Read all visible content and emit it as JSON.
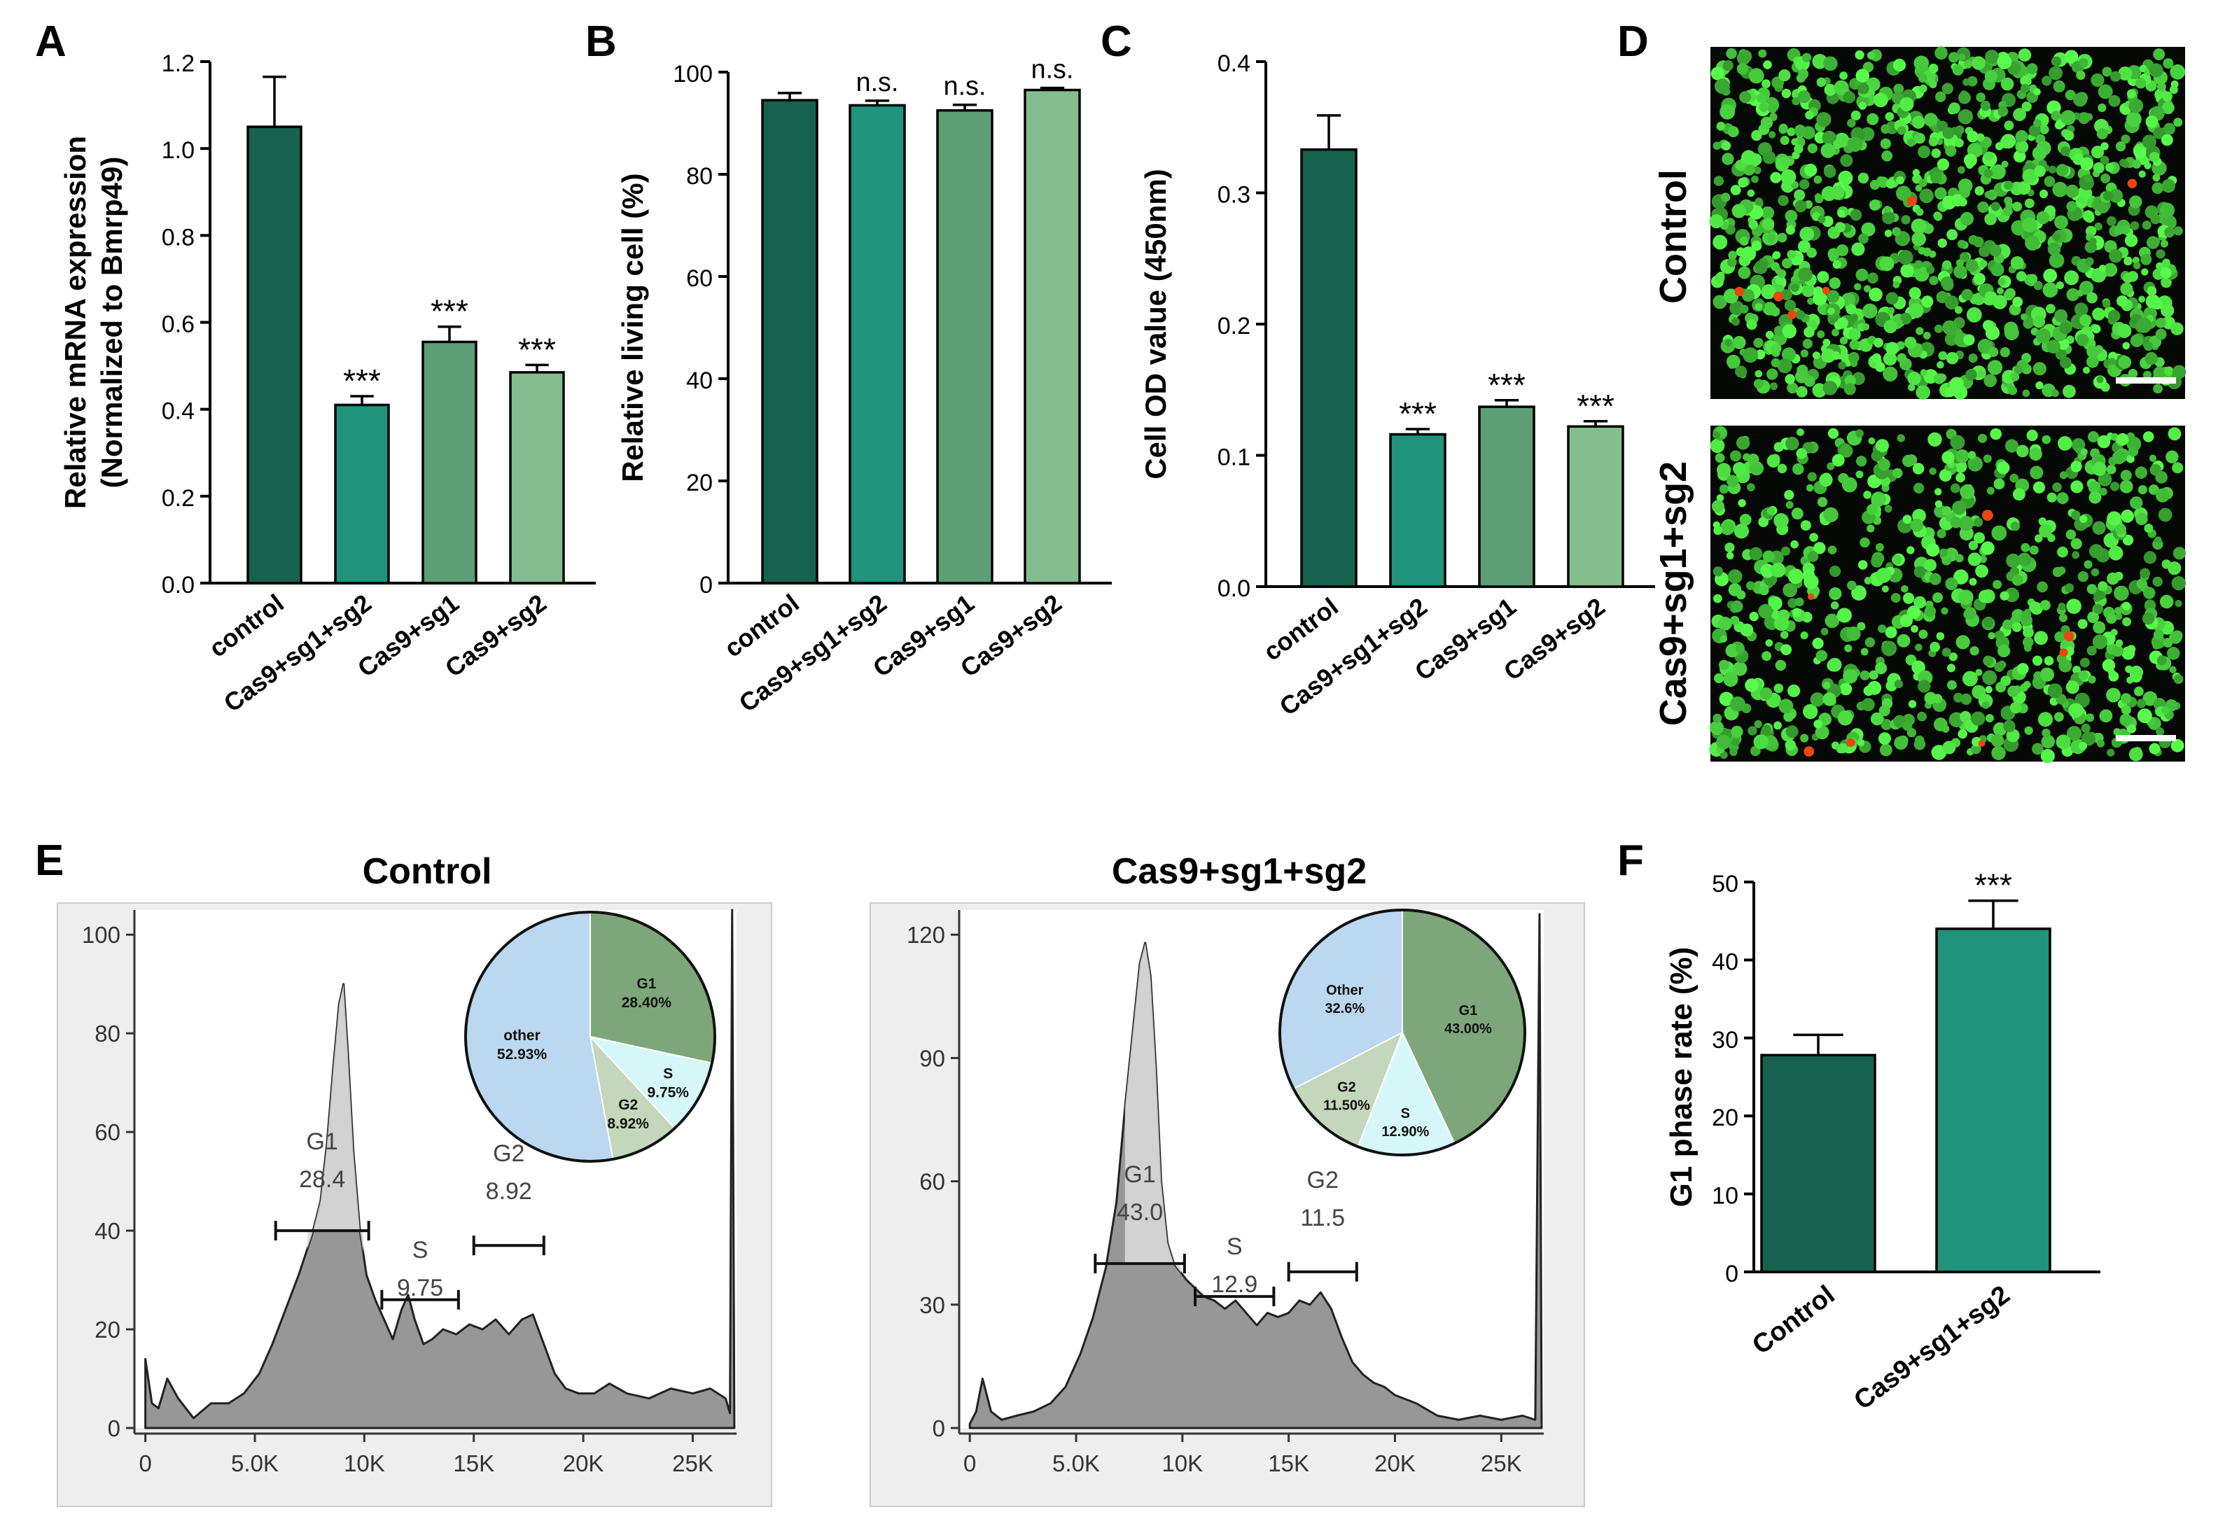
{
  "colors": {
    "c1": "#17624f",
    "c2": "#1f937c",
    "c3": "#5c9f77",
    "c4": "#84bd8e",
    "histo_fill": "#979797",
    "histo_bg": "#eeeeee",
    "pie_other": "#bcd8f0",
    "pie_g1": "#7da77a",
    "pie_s": "#d6f7f8",
    "pie_g2": "#c4d6bc",
    "cell_green": "#33dd44",
    "cell_red": "#ee4411"
  },
  "chart_data": [
    {
      "panel": "A",
      "type": "bar",
      "ylabel_line1": "Relative  mRNA expression",
      "ylabel_line2": "(Normalized to Bmrp49)",
      "categories": [
        "control",
        "Cas9+sg1+sg2",
        "Cas9+sg1",
        "Cas9+sg2"
      ],
      "values": [
        1.05,
        0.41,
        0.555,
        0.485
      ],
      "errors": [
        0.115,
        0.02,
        0.035,
        0.017
      ],
      "sig": [
        "",
        "***",
        "***",
        "***"
      ],
      "ylim": [
        0,
        1.2
      ],
      "ticks": [
        "0.0",
        "0.2",
        "0.4",
        "0.6",
        "0.8",
        "1.0",
        "1.2"
      ],
      "tick_values": [
        0,
        0.2,
        0.4,
        0.6,
        0.8,
        1.0,
        1.2
      ]
    },
    {
      "panel": "B",
      "type": "bar",
      "ylabel": "Relative living cell (%)",
      "categories": [
        "control",
        "Cas9+sg1+sg2",
        "Cas9+sg1",
        "Cas9+sg2"
      ],
      "values": [
        94.5,
        93.5,
        92.5,
        96.5
      ],
      "errors": [
        1.4,
        0.9,
        1.1,
        0.4
      ],
      "sig": [
        "",
        "n.s.",
        "n.s.",
        "n.s."
      ],
      "ylim": [
        0,
        100
      ],
      "ticks": [
        "0",
        "20",
        "40",
        "60",
        "80",
        "100"
      ],
      "tick_values": [
        0,
        20,
        40,
        60,
        80,
        100
      ]
    },
    {
      "panel": "C",
      "type": "bar",
      "ylabel": "Cell OD value (450nm)",
      "categories": [
        "control",
        "Cas9+sg1+sg2",
        "Cas9+sg1",
        "Cas9+sg2"
      ],
      "values": [
        0.333,
        0.116,
        0.137,
        0.122
      ],
      "errors": [
        0.026,
        0.004,
        0.005,
        0.004
      ],
      "sig": [
        "",
        "***",
        "***",
        "***"
      ],
      "ylim": [
        0,
        0.4
      ],
      "ticks": [
        "0.0",
        "0.1",
        "0.2",
        "0.3",
        "0.4"
      ],
      "tick_values": [
        0,
        0.1,
        0.2,
        0.3,
        0.4
      ]
    },
    {
      "panel": "E-left",
      "type": "area",
      "title": "Control",
      "x": [
        0,
        300,
        600,
        1000,
        1500,
        2200,
        3000,
        3800,
        4500,
        5200,
        5800,
        6400,
        7000,
        7600,
        8000,
        8300,
        8600,
        8850,
        9050,
        9250,
        9500,
        9800,
        10100,
        10500,
        10900,
        11300,
        11700,
        12000,
        12300,
        12700,
        13100,
        13600,
        14200,
        14800,
        15400,
        16000,
        16600,
        17200,
        17700,
        18200,
        18700,
        19200,
        19800,
        20500,
        21200,
        22000,
        23000,
        24000,
        25000,
        25800,
        26500,
        26700,
        26800,
        26900
      ],
      "y": [
        14,
        5,
        4,
        10,
        6,
        2,
        5,
        5,
        7,
        11,
        17,
        24,
        31,
        39,
        46,
        58,
        74,
        86,
        90,
        76,
        56,
        40,
        31,
        26,
        22,
        18,
        24,
        27,
        22,
        17,
        18,
        20,
        19,
        21,
        20,
        22,
        19,
        22,
        23,
        17,
        11,
        8,
        7,
        7,
        9,
        7,
        6,
        8,
        7,
        8,
        6,
        3,
        105,
        0
      ],
      "xlim": [
        -500,
        27000
      ],
      "ylim": [
        0,
        105
      ],
      "xticks": [
        "0",
        "5.0K",
        "10K",
        "15K",
        "20K",
        "25K"
      ],
      "xtick_values": [
        0,
        5000,
        10000,
        15000,
        20000,
        25000
      ],
      "yticks": [
        "0",
        "20",
        "40",
        "60",
        "80",
        "100"
      ],
      "ytick_values": [
        0,
        20,
        40,
        60,
        80,
        100
      ],
      "gates": [
        {
          "name": "G1",
          "value": "28.4",
          "x1": 5950,
          "x2": 10200,
          "y": 40
        },
        {
          "name": "S",
          "value": "9.75",
          "x1": 10800,
          "x2": 14300,
          "y": 26
        },
        {
          "name": "G2",
          "value": "8.92",
          "x1": 15000,
          "x2": 18200,
          "y": 37
        }
      ],
      "g1_highlight": {
        "x1": 7400,
        "x2": 9950
      }
    },
    {
      "panel": "E-right",
      "type": "area",
      "title": "Cas9+sg1+sg2",
      "x": [
        0,
        300,
        600,
        1000,
        1500,
        2200,
        3000,
        3800,
        4500,
        5200,
        5800,
        6400,
        6900,
        7300,
        7700,
        8000,
        8250,
        8500,
        8750,
        9000,
        9300,
        9600,
        9900,
        10200,
        10600,
        11000,
        11500,
        12000,
        12500,
        13000,
        13500,
        14000,
        14500,
        15000,
        15500,
        16000,
        16500,
        17000,
        17500,
        18000,
        18500,
        19000,
        19500,
        20000,
        21000,
        22000,
        23000,
        24000,
        25000,
        26000,
        26600,
        26800,
        26900
      ],
      "y": [
        1,
        4,
        12,
        4,
        2,
        3,
        4,
        6,
        10,
        18,
        27,
        39,
        55,
        78,
        98,
        113,
        118,
        110,
        88,
        60,
        45,
        40,
        38,
        36,
        34,
        32,
        31,
        29,
        31,
        28,
        25,
        28,
        27,
        28,
        31,
        30,
        33,
        29,
        22,
        16,
        13,
        11,
        10,
        8,
        6,
        3,
        2,
        3,
        2,
        3,
        2,
        125,
        0
      ],
      "xlim": [
        -500,
        27000
      ],
      "ylim": [
        0,
        126
      ],
      "xticks": [
        "0",
        "5.0K",
        "10K",
        "15K",
        "20K",
        "25K"
      ],
      "xtick_values": [
        0,
        5000,
        10000,
        15000,
        20000,
        25000
      ],
      "yticks": [
        "0",
        "30",
        "60",
        "90",
        "120"
      ],
      "ytick_values": [
        0,
        30,
        60,
        90,
        120
      ],
      "gates": [
        {
          "name": "G1",
          "value": "43.0",
          "x1": 5900,
          "x2": 10100,
          "y": 40
        },
        {
          "name": "S",
          "value": "12.9",
          "x1": 10600,
          "x2": 14300,
          "y": 32
        },
        {
          "name": "G2",
          "value": "11.5",
          "x1": 15000,
          "x2": 18200,
          "y": 38
        }
      ],
      "g1_highlight": {
        "x1": 7300,
        "x2": 9950
      }
    },
    {
      "panel": "E-left-pie",
      "type": "pie",
      "slices": [
        {
          "name": "G1",
          "value": 28.4,
          "label": "28.40%",
          "color_key": "pie_g1"
        },
        {
          "name": "S",
          "value": 9.75,
          "label": "9.75%",
          "color_key": "pie_s"
        },
        {
          "name": "G2",
          "value": 8.92,
          "label": "8.92%",
          "color_key": "pie_g2"
        },
        {
          "name": "other",
          "value": 52.93,
          "label": "52.93%",
          "color_key": "pie_other"
        }
      ]
    },
    {
      "panel": "E-right-pie",
      "type": "pie",
      "slices": [
        {
          "name": "G1",
          "value": 43.0,
          "label": "43.00%",
          "color_key": "pie_g1"
        },
        {
          "name": "S",
          "value": 12.9,
          "label": "12.90%",
          "color_key": "pie_s"
        },
        {
          "name": "G2",
          "value": 11.5,
          "label": "11.50%",
          "color_key": "pie_g2"
        },
        {
          "name": "Other",
          "value": 32.6,
          "label": "32.6%",
          "color_key": "pie_other"
        }
      ]
    },
    {
      "panel": "F",
      "type": "bar",
      "ylabel": "G1 phase rate (%)",
      "categories": [
        "Control",
        "Cas9+sg1+sg2"
      ],
      "values": [
        27.8,
        44.0
      ],
      "errors": [
        2.6,
        3.6
      ],
      "sig": [
        "",
        "***"
      ],
      "ylim": [
        0,
        50
      ],
      "ticks": [
        "0",
        "10",
        "20",
        "30",
        "40",
        "50"
      ],
      "tick_values": [
        0,
        10,
        20,
        30,
        40,
        50
      ]
    }
  ],
  "panel_letters": {
    "A": "A",
    "B": "B",
    "C": "C",
    "D": "D",
    "E": "E",
    "F": "F"
  },
  "microscopy": {
    "top_label": "Control",
    "bottom_label": "Cas9+sg1+sg2"
  }
}
